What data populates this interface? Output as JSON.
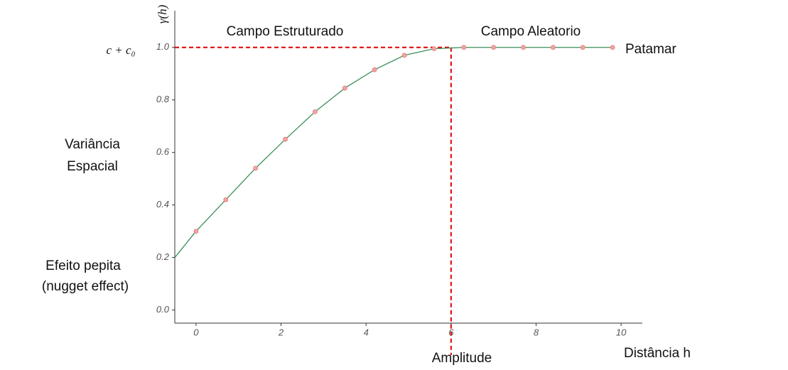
{
  "chart_data": {
    "type": "line",
    "y_label": "γ(h)",
    "sill_label": "c + c₀",
    "annotations": {
      "structured": "Campo Estruturado",
      "random": "Campo Aleatorio",
      "sill": "Patamar",
      "variance_1": "Variância",
      "variance_2": "Espacial",
      "nugget_1": "Efeito pepita",
      "nugget_2": "(nugget effect)",
      "range": "Amplitude",
      "x_label": "Distância h"
    },
    "xlim": [
      -0.5,
      10.5
    ],
    "ylim": [
      -0.05,
      1.14
    ],
    "xticks": [
      0,
      2,
      4,
      6,
      8,
      10
    ],
    "yticks": [
      {
        "value": 0,
        "label": "0.0"
      },
      0.2,
      0.4,
      0.6,
      0.8,
      {
        "value": 1,
        "label": "1.0"
      }
    ],
    "line": {
      "color": "#3a8f5a",
      "x": [
        -0.5,
        0,
        0.7,
        1.4,
        2.1,
        2.8,
        3.5,
        4.2,
        4.9,
        5.6,
        6.3,
        7.0,
        7.7,
        8.4,
        9.1,
        9.8
      ],
      "values": [
        0.2,
        0.3,
        0.42,
        0.54,
        0.65,
        0.755,
        0.845,
        0.915,
        0.97,
        0.995,
        1.0,
        1.0,
        1.0,
        1.0,
        1.0,
        1.0
      ]
    },
    "points": {
      "color": "#f4a3a3",
      "x": [
        0,
        0.7,
        1.4,
        2.1,
        2.8,
        3.5,
        4.2,
        4.9,
        5.6,
        6.3,
        7.0,
        7.7,
        8.4,
        9.1,
        9.8
      ],
      "values": [
        0.3,
        0.42,
        0.54,
        0.65,
        0.755,
        0.845,
        0.915,
        0.97,
        0.995,
        1.0,
        1.0,
        1.0,
        1.0,
        1.0,
        1.0
      ]
    },
    "reference": {
      "x": 6,
      "y": 1,
      "color": "#e00000"
    }
  }
}
